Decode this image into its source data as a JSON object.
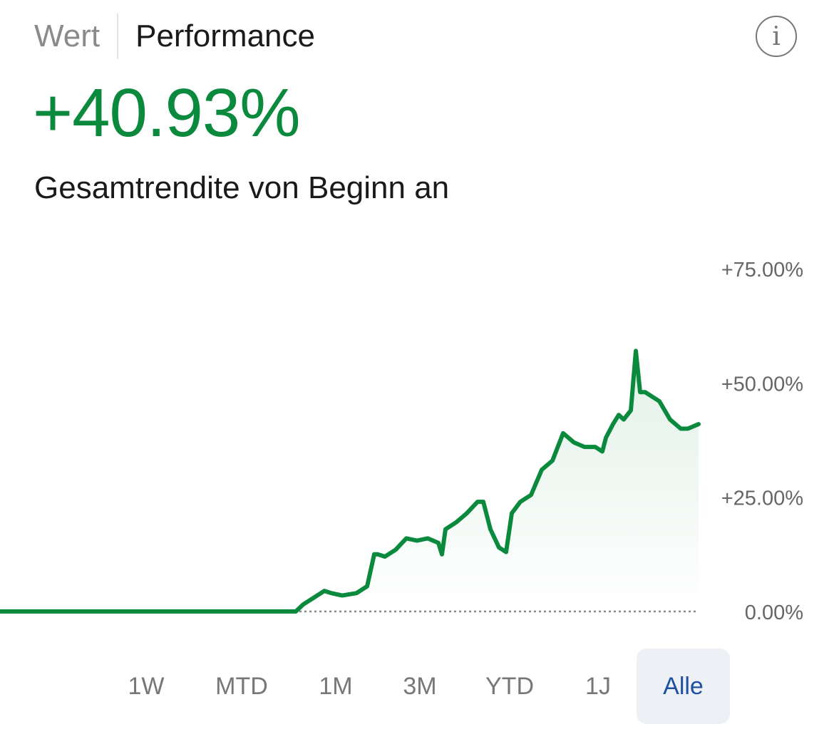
{
  "header": {
    "tabs": [
      {
        "label": "Wert",
        "active": false
      },
      {
        "label": "Performance",
        "active": true
      }
    ],
    "info_icon": "info-icon",
    "info_glyph": "i"
  },
  "summary": {
    "value": "+40.93%",
    "label": "Gesamtrendite von Beginn an",
    "value_color": "#0b8a3e"
  },
  "chart_data": {
    "type": "area",
    "line_color": "#0b8a3e",
    "baseline_style": "dotted",
    "y_axis_position": "right",
    "ylim": [
      0,
      75
    ],
    "yticks": [
      {
        "value": 75,
        "label": "+75.00%"
      },
      {
        "value": 50,
        "label": "+50.00%"
      },
      {
        "value": 25,
        "label": "+25.00%"
      },
      {
        "value": 0,
        "label": "0.00%"
      }
    ],
    "x": [
      0,
      100,
      200,
      300,
      415,
      425,
      440,
      455,
      465,
      480,
      500,
      515,
      525,
      530,
      540,
      555,
      570,
      585,
      600,
      615,
      620,
      625,
      640,
      655,
      670,
      678,
      688,
      700,
      710,
      718,
      730,
      745,
      760,
      775,
      790,
      805,
      820,
      835,
      845,
      850,
      860,
      868,
      875,
      885,
      892,
      898,
      905,
      915,
      925,
      940,
      955,
      965,
      980
    ],
    "values": [
      0,
      0,
      0,
      0,
      0,
      1.5,
      3,
      4.5,
      4,
      3.5,
      4,
      5.5,
      12.5,
      12.5,
      12,
      13.5,
      16,
      15.5,
      16,
      15,
      12.5,
      18,
      19.5,
      21.5,
      24,
      24,
      18,
      14,
      13,
      21.5,
      24,
      25.5,
      31,
      33,
      39,
      37,
      36,
      36,
      35,
      38,
      41,
      43,
      42,
      44,
      57,
      48,
      48,
      47,
      46,
      42,
      40,
      40,
      41
    ]
  },
  "ranges": {
    "items": [
      {
        "label": "1W"
      },
      {
        "label": "MTD"
      },
      {
        "label": "1M"
      },
      {
        "label": "3M"
      },
      {
        "label": "YTD"
      },
      {
        "label": "1J"
      },
      {
        "label": "Alle",
        "active": true
      }
    ]
  }
}
